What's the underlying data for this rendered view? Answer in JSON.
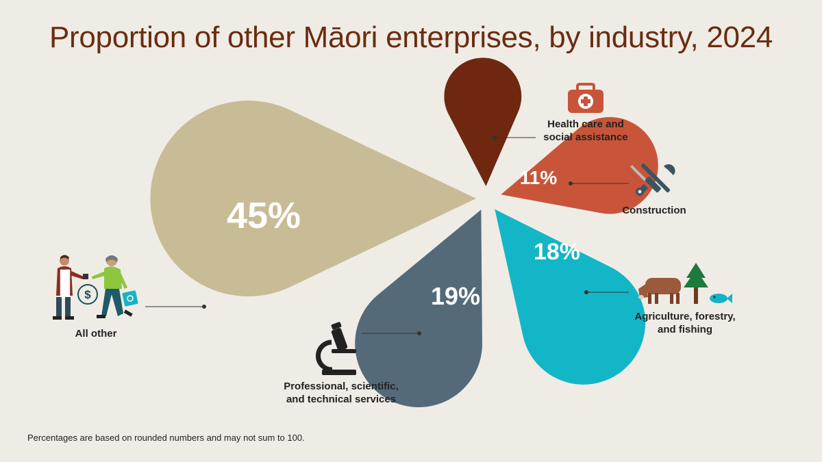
{
  "title": "Proportion of other Māori enterprises, by industry, 2024",
  "footnote": "Percentages are based on rounded numbers and may not sum to 100.",
  "chart_data": {
    "type": "pie",
    "title": "Proportion of other Māori enterprises, by industry, 2024",
    "unit": "%",
    "slices": [
      {
        "label": "All other",
        "label_lines": [
          "All other"
        ],
        "value": 45,
        "display": "45%",
        "color": "#c8bc97",
        "text_color": "#ffffff",
        "icon": "shop-people-icon"
      },
      {
        "label": "Health care and social assistance",
        "label_lines": [
          "Health care and",
          "social assistance"
        ],
        "value": 7,
        "display": "7%",
        "color": "#6f2710",
        "text_color": "#6f2710",
        "icon": "first-aid-kit-icon"
      },
      {
        "label": "Construction",
        "label_lines": [
          "Construction"
        ],
        "value": 11,
        "display": "11%",
        "color": "#c8553a",
        "text_color": "#ffffff",
        "icon": "wrench-screwdriver-icon"
      },
      {
        "label": "Agriculture, forestry, and fishing",
        "label_lines": [
          "Agriculture, forestry,",
          "and fishing"
        ],
        "value": 18,
        "display": "18%",
        "color": "#13b6c6",
        "text_color": "#ffffff",
        "icon": "cow-tree-fish-icon"
      },
      {
        "label": "Professional, scientific, and technical services",
        "label_lines": [
          "Professional, scientific,",
          "and technical services"
        ],
        "value": 19,
        "display": "19%",
        "color": "#546a78",
        "text_color": "#ffffff",
        "icon": "microscope-icon"
      }
    ]
  }
}
